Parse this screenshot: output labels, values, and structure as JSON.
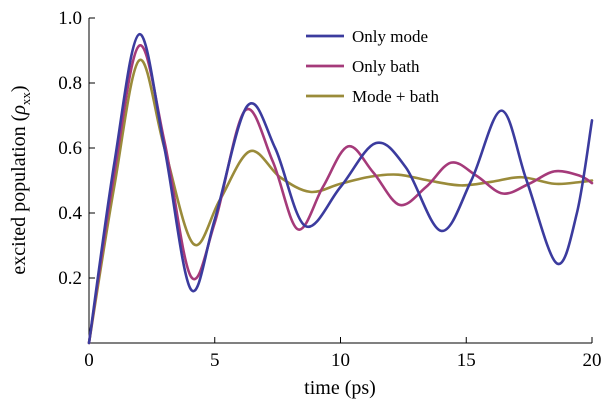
{
  "chart_data": {
    "type": "line",
    "xlabel": "time (ps)",
    "ylabel_main": "excited population (",
    "ylabel_symbol": "ρ",
    "ylabel_subscript": "xx",
    "ylabel_close": ")",
    "xlim": [
      0,
      20
    ],
    "ylim": [
      0,
      1.0
    ],
    "xticks": [
      0,
      5,
      10,
      15,
      20
    ],
    "yticks": [
      0.2,
      0.4,
      0.6,
      0.8,
      1.0
    ],
    "xtick_labels": [
      "0",
      "5",
      "10",
      "15",
      "20"
    ],
    "ytick_labels": [
      "0.2",
      "0.4",
      "0.6",
      "0.8",
      "1.0"
    ],
    "grid": false,
    "legend_position": "top-right",
    "series": [
      {
        "name": "Only mode",
        "color": "#3b3b9e",
        "x": [
          0,
          1,
          2.0,
          3,
          4.05,
          5,
          6.3,
          7.4,
          8.6,
          10,
          11.4,
          12.6,
          14.0,
          15.2,
          16.4,
          17.4,
          18.6,
          19.4,
          20
        ],
        "y": [
          0,
          0.55,
          0.95,
          0.6,
          0.165,
          0.38,
          0.73,
          0.6,
          0.36,
          0.48,
          0.615,
          0.54,
          0.345,
          0.5,
          0.715,
          0.5,
          0.245,
          0.4,
          0.685
        ]
      },
      {
        "name": "Only bath",
        "color": "#a53a7a",
        "x": [
          0,
          1,
          2.0,
          3,
          4.05,
          5,
          6.2,
          7.3,
          8.3,
          9.3,
          10.3,
          11.3,
          12.35,
          13.4,
          14.4,
          15.4,
          16.45,
          17.5,
          18.5,
          19.5,
          20
        ],
        "y": [
          0,
          0.52,
          0.915,
          0.62,
          0.205,
          0.37,
          0.715,
          0.56,
          0.35,
          0.48,
          0.605,
          0.525,
          0.425,
          0.48,
          0.555,
          0.515,
          0.46,
          0.49,
          0.528,
          0.515,
          0.492
        ]
      },
      {
        "name": "Mode + bath",
        "color": "#9a8b3a",
        "x": [
          0,
          1,
          2.0,
          3,
          4.15,
          5.2,
          6.4,
          7.6,
          8.8,
          10,
          11.2,
          12.3,
          13.5,
          14.8,
          16.0,
          17.2,
          18.5,
          19.5,
          20
        ],
        "y": [
          0,
          0.48,
          0.87,
          0.6,
          0.305,
          0.44,
          0.59,
          0.51,
          0.465,
          0.49,
          0.512,
          0.518,
          0.5,
          0.485,
          0.496,
          0.51,
          0.49,
          0.495,
          0.5
        ]
      }
    ]
  }
}
